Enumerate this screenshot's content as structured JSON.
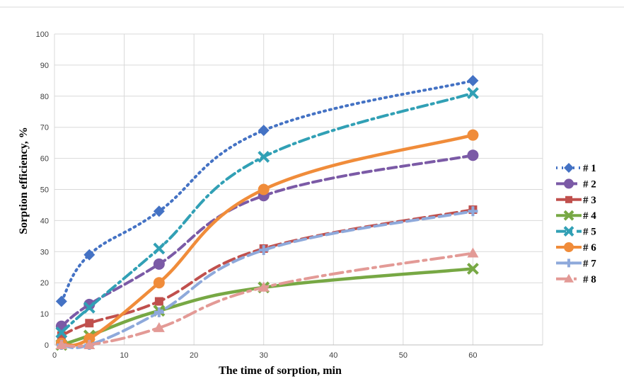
{
  "chart_data": {
    "type": "line",
    "title": "",
    "xlabel": "The time of sorption, min",
    "ylabel": "Sorption efficiency, %",
    "xlim": [
      0,
      70
    ],
    "ylim": [
      0,
      100
    ],
    "xticks": [
      0,
      10,
      20,
      30,
      40,
      50,
      60
    ],
    "yticks": [
      0,
      10,
      20,
      30,
      40,
      50,
      60,
      70,
      80,
      90,
      100
    ],
    "grid": true,
    "legend": "right",
    "x": [
      1,
      5,
      15,
      30,
      60
    ],
    "series": [
      {
        "name": "# 1",
        "values": [
          14,
          29,
          43,
          69,
          85
        ],
        "color": "#4472C4",
        "marker": "diamond",
        "dash": "dot"
      },
      {
        "name": "# 2",
        "values": [
          6,
          13,
          26,
          48,
          61
        ],
        "color": "#7B5AA6",
        "marker": "circle",
        "dash": "dash"
      },
      {
        "name": "# 3",
        "values": [
          3,
          7,
          14,
          31,
          43.5
        ],
        "color": "#C0504D",
        "marker": "square",
        "dash": "longdash"
      },
      {
        "name": "# 4",
        "values": [
          0,
          3,
          11,
          18.5,
          24.5
        ],
        "color": "#77A844",
        "marker": "x",
        "dash": "solid"
      },
      {
        "name": "# 5",
        "values": [
          4,
          12,
          31,
          60.5,
          81
        ],
        "color": "#31A0B5",
        "marker": "x",
        "dash": "dashdot"
      },
      {
        "name": "# 6",
        "values": [
          0.5,
          2,
          20,
          50,
          67.5
        ],
        "color": "#F08C3A",
        "marker": "circle",
        "dash": "solid"
      },
      {
        "name": "# 7",
        "values": [
          0,
          0,
          10.5,
          30.5,
          43
        ],
        "color": "#8EA9DB",
        "marker": "plus",
        "dash": "longdash"
      },
      {
        "name": "# 8",
        "values": [
          0,
          0,
          5.5,
          18.5,
          29.5
        ],
        "color": "#E39A96",
        "marker": "triangle",
        "dash": "longdashdot"
      }
    ]
  }
}
